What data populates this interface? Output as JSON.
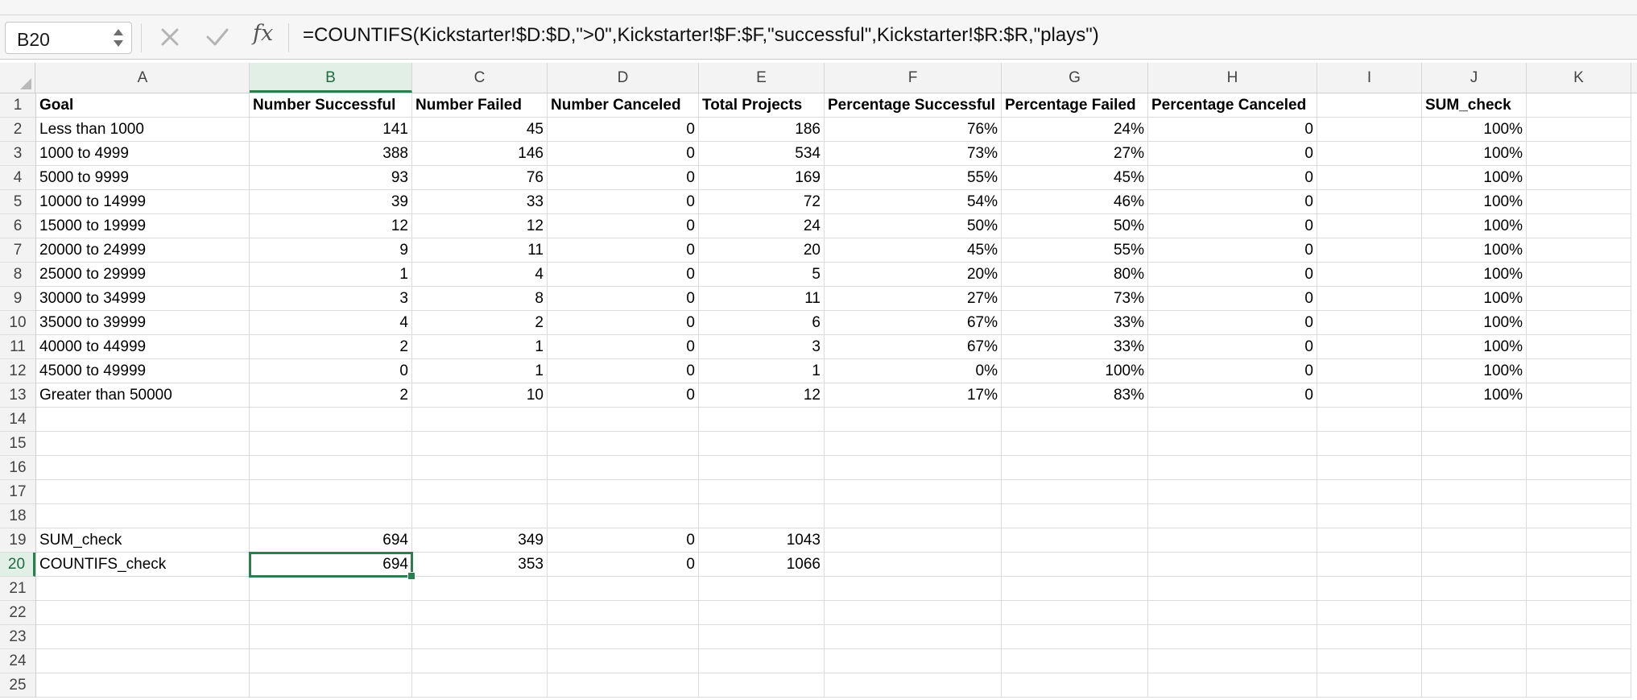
{
  "name_box": "B20",
  "formula": "=COUNTIFS(Kickstarter!$D:$D,\">0\",Kickstarter!$F:$F,\"successful\",Kickstarter!$R:$R,\"plays\")",
  "icons": {
    "cancel": "x-icon",
    "enter": "checkmark-icon",
    "function": "fx-icon"
  },
  "columns": [
    "A",
    "B",
    "C",
    "D",
    "E",
    "F",
    "G",
    "H",
    "I",
    "J",
    "K"
  ],
  "selected": {
    "column": "B",
    "row": 20
  },
  "colors": {
    "selection": "#2e7d4f",
    "header_bg": "#f3f3f3"
  },
  "row_numbers": [
    1,
    2,
    3,
    4,
    5,
    6,
    7,
    8,
    9,
    10,
    11,
    12,
    13,
    14,
    15,
    16,
    17,
    18,
    19,
    20,
    21,
    22,
    23,
    24,
    25
  ],
  "sheet_rows": [
    [
      "Goal",
      "Number Successful",
      "Number Failed",
      "Number Canceled",
      "Total Projects",
      "Percentage Successful",
      "Percentage Failed",
      "Percentage Canceled",
      "",
      "SUM_check",
      ""
    ],
    [
      "Less than 1000",
      "141",
      "45",
      "0",
      "186",
      "76%",
      "24%",
      "0",
      "",
      "100%",
      ""
    ],
    [
      "1000 to 4999",
      "388",
      "146",
      "0",
      "534",
      "73%",
      "27%",
      "0",
      "",
      "100%",
      ""
    ],
    [
      "5000 to 9999",
      "93",
      "76",
      "0",
      "169",
      "55%",
      "45%",
      "0",
      "",
      "100%",
      ""
    ],
    [
      "10000 to 14999",
      "39",
      "33",
      "0",
      "72",
      "54%",
      "46%",
      "0",
      "",
      "100%",
      ""
    ],
    [
      "15000 to 19999",
      "12",
      "12",
      "0",
      "24",
      "50%",
      "50%",
      "0",
      "",
      "100%",
      ""
    ],
    [
      "20000 to 24999",
      "9",
      "11",
      "0",
      "20",
      "45%",
      "55%",
      "0",
      "",
      "100%",
      ""
    ],
    [
      "25000 to 29999",
      "1",
      "4",
      "0",
      "5",
      "20%",
      "80%",
      "0",
      "",
      "100%",
      ""
    ],
    [
      "30000 to 34999",
      "3",
      "8",
      "0",
      "11",
      "27%",
      "73%",
      "0",
      "",
      "100%",
      ""
    ],
    [
      "35000 to 39999",
      "4",
      "2",
      "0",
      "6",
      "67%",
      "33%",
      "0",
      "",
      "100%",
      ""
    ],
    [
      "40000 to 44999",
      "2",
      "1",
      "0",
      "3",
      "67%",
      "33%",
      "0",
      "",
      "100%",
      ""
    ],
    [
      "45000 to 49999",
      "0",
      "1",
      "0",
      "1",
      "0%",
      "100%",
      "0",
      "",
      "100%",
      ""
    ],
    [
      "Greater than 50000",
      "2",
      "10",
      "0",
      "12",
      "17%",
      "83%",
      "0",
      "",
      "100%",
      ""
    ],
    [
      "",
      "",
      "",
      "",
      "",
      "",
      "",
      "",
      "",
      "",
      ""
    ],
    [
      "",
      "",
      "",
      "",
      "",
      "",
      "",
      "",
      "",
      "",
      ""
    ],
    [
      "",
      "",
      "",
      "",
      "",
      "",
      "",
      "",
      "",
      "",
      ""
    ],
    [
      "",
      "",
      "",
      "",
      "",
      "",
      "",
      "",
      "",
      "",
      ""
    ],
    [
      "",
      "",
      "",
      "",
      "",
      "",
      "",
      "",
      "",
      "",
      ""
    ],
    [
      "SUM_check",
      "694",
      "349",
      "0",
      "1043",
      "",
      "",
      "",
      "",
      "",
      ""
    ],
    [
      "COUNTIFS_check",
      "694",
      "353",
      "0",
      "1066",
      "",
      "",
      "",
      "",
      "",
      ""
    ],
    [
      "",
      "",
      "",
      "",
      "",
      "",
      "",
      "",
      "",
      "",
      ""
    ],
    [
      "",
      "",
      "",
      "",
      "",
      "",
      "",
      "",
      "",
      "",
      ""
    ],
    [
      "",
      "",
      "",
      "",
      "",
      "",
      "",
      "",
      "",
      "",
      ""
    ],
    [
      "",
      "",
      "",
      "",
      "",
      "",
      "",
      "",
      "",
      "",
      ""
    ],
    [
      "",
      "",
      "",
      "",
      "",
      "",
      "",
      "",
      "",
      "",
      ""
    ]
  ]
}
